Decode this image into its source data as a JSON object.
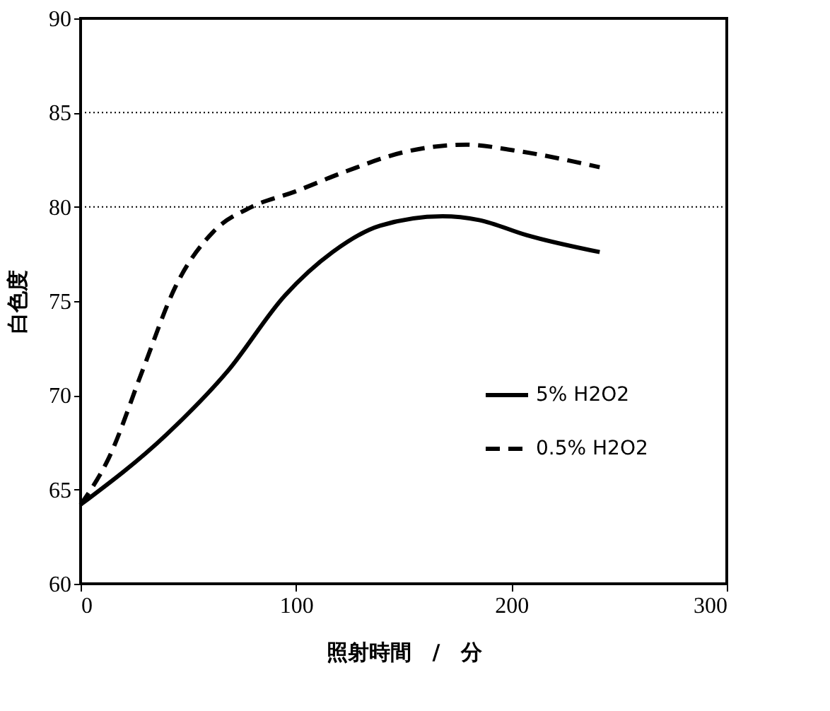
{
  "chart_data": {
    "type": "line",
    "xlabel": "照射時間　/　分",
    "ylabel": "白色度",
    "xlim": [
      0,
      300
    ],
    "xticks": [
      0,
      100,
      200,
      300
    ],
    "ylim": [
      60,
      90
    ],
    "yticks": [
      60,
      65,
      70,
      75,
      80,
      85,
      90
    ],
    "grid": false,
    "legend": "right",
    "marker": "none",
    "series": [
      {
        "name": "5% H2O2",
        "color": "#000000",
        "line_style": "solid",
        "x": [
          0,
          39.7,
          68.4,
          94.9,
          117,
          139,
          168,
          185,
          207,
          241
        ],
        "values": [
          64.2,
          67.9,
          71.3,
          75.3,
          77.6,
          79.0,
          79.5,
          79.3,
          78.5,
          77.6
        ]
      },
      {
        "name": "0.5% H2O2",
        "color": "#000000",
        "line_style": "dashed",
        "x": [
          0,
          13.2,
          28.7,
          44.2,
          61.8,
          79.5,
          99.3,
          123.6,
          150,
          179,
          201,
          241
        ],
        "values": [
          64.2,
          66.7,
          71.3,
          75.8,
          78.7,
          80.0,
          80.8,
          81.9,
          82.9,
          83.3,
          83.0,
          82.1
        ]
      }
    ],
    "ref_lines": [
      {
        "axis": "y",
        "value": 80,
        "color": "#000000",
        "line_style": "dotted"
      },
      {
        "axis": "y",
        "value": 85,
        "color": "#000000",
        "line_style": "dotted"
      }
    ]
  }
}
